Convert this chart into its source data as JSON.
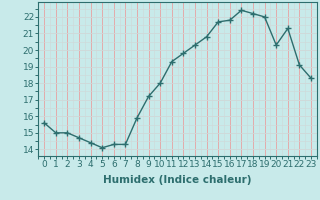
{
  "x": [
    0,
    1,
    2,
    3,
    4,
    5,
    6,
    7,
    8,
    9,
    10,
    11,
    12,
    13,
    14,
    15,
    16,
    17,
    18,
    19,
    20,
    21,
    22,
    23
  ],
  "y": [
    15.6,
    15.0,
    15.0,
    14.7,
    14.4,
    14.1,
    14.3,
    14.3,
    15.9,
    17.2,
    18.0,
    19.3,
    19.8,
    20.3,
    20.8,
    21.7,
    21.8,
    22.4,
    22.2,
    22.0,
    20.3,
    21.3,
    19.1,
    18.3
  ],
  "line_color": "#2d6e6e",
  "marker": "+",
  "bg_color": "#c8eaea",
  "grid_major_color": "#e8a0a0",
  "grid_minor_color": "#d0d8d8",
  "xlabel": "Humidex (Indice chaleur)",
  "ylabel_ticks": [
    14,
    15,
    16,
    17,
    18,
    19,
    20,
    21,
    22
  ],
  "ylim": [
    13.6,
    22.9
  ],
  "xlim": [
    -0.5,
    23.5
  ],
  "xticks": [
    0,
    1,
    2,
    3,
    4,
    5,
    6,
    7,
    8,
    9,
    10,
    11,
    12,
    13,
    14,
    15,
    16,
    17,
    18,
    19,
    20,
    21,
    22,
    23
  ],
  "font_color": "#2d6e6e",
  "xlabel_fontsize": 7.5,
  "tick_fontsize": 6.5,
  "line_width": 1.0,
  "marker_size": 4,
  "marker_edge_width": 1.0
}
